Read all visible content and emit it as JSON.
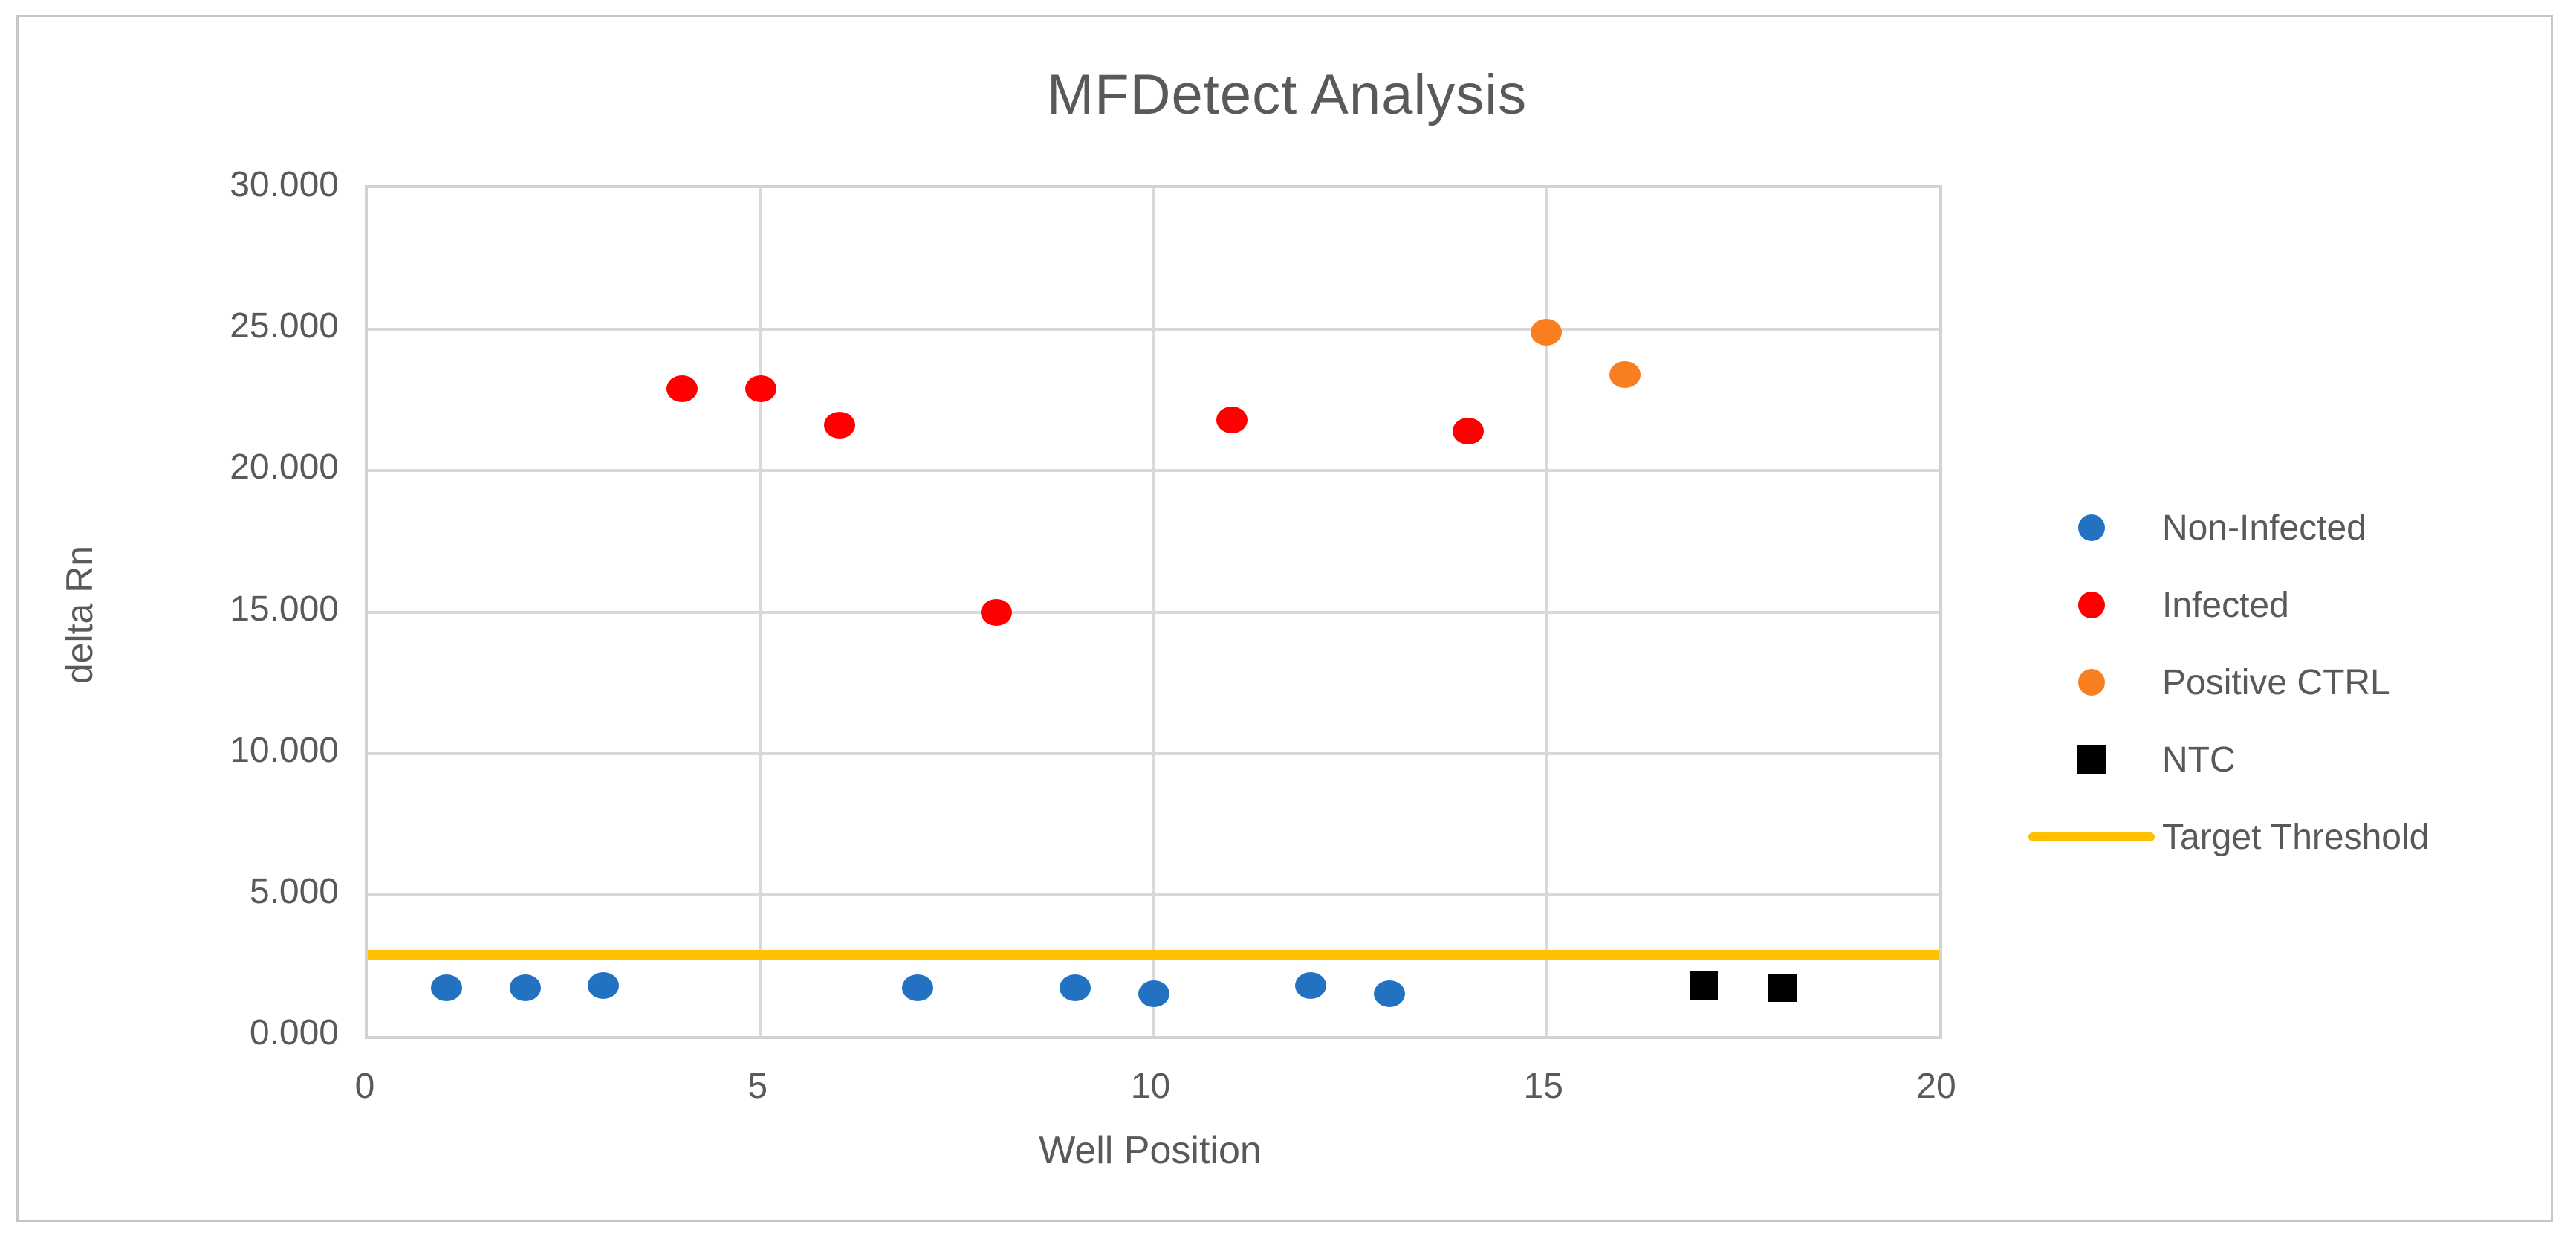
{
  "chart_data": {
    "type": "scatter",
    "title": "MFDetect Analysis",
    "xlabel": "Well Position",
    "ylabel": "delta Rn",
    "xlim": [
      0,
      20
    ],
    "ylim": [
      0,
      30
    ],
    "grid": true,
    "legend_position": "right",
    "x_ticks": [
      0,
      5,
      10,
      15,
      20
    ],
    "y_ticks": [
      {
        "value": 30,
        "label": "30.000"
      },
      {
        "value": 25,
        "label": "25.000"
      },
      {
        "value": 20,
        "label": "20.000"
      },
      {
        "value": 15,
        "label": "15.000"
      },
      {
        "value": 10,
        "label": "10.000"
      },
      {
        "value": 5,
        "label": "5.000"
      },
      {
        "value": 0,
        "label": "0.000"
      }
    ],
    "series": [
      {
        "name": "Non-Infected",
        "marker": "circle",
        "color": "#2372c1",
        "points": [
          [
            1,
            1.7
          ],
          [
            2,
            1.7
          ],
          [
            3,
            1.8
          ],
          [
            7,
            1.7
          ],
          [
            9,
            1.7
          ],
          [
            10,
            1.5
          ],
          [
            12,
            1.8
          ],
          [
            13,
            1.5
          ]
        ]
      },
      {
        "name": "Infected",
        "marker": "circle",
        "color": "#fe0000",
        "points": [
          [
            4,
            22.9
          ],
          [
            5,
            22.9
          ],
          [
            6,
            21.6
          ],
          [
            8,
            15.0
          ],
          [
            11,
            21.8
          ],
          [
            14,
            21.4
          ]
        ]
      },
      {
        "name": "Positive CTRL",
        "marker": "circle",
        "color": "#f97e20",
        "points": [
          [
            15,
            24.9
          ],
          [
            16,
            23.4
          ]
        ]
      },
      {
        "name": "NTC",
        "marker": "square",
        "color": "#000000",
        "points": [
          [
            17,
            1.8
          ],
          [
            18,
            1.7
          ]
        ]
      },
      {
        "name": "Target Threshold",
        "marker": "line",
        "color": "#ffc000",
        "threshold_y": 2.9
      }
    ],
    "style_colors": {
      "text": "#595959",
      "gridline": "#d9d9d9",
      "frame_border": "#c6c6c6"
    }
  }
}
